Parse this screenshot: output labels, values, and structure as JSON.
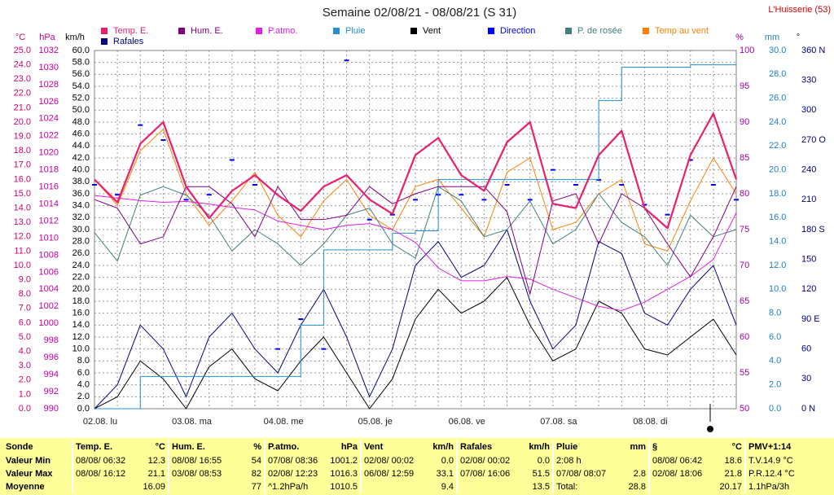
{
  "chart_data": {
    "type": "line",
    "title": "Semaine 02/08/21 - 08/08/21 (S 31)",
    "station": "L'Huisserie (53)",
    "categories": [
      "02.08. lu",
      null,
      null,
      null,
      "03.08. ma",
      null,
      null,
      null,
      "04.08. me",
      null,
      null,
      null,
      "05.08. je",
      null,
      null,
      null,
      "06.08. ve",
      null,
      null,
      null,
      "07.08. sa",
      null,
      null,
      null,
      "08.08. di",
      null,
      null,
      null,
      null
    ],
    "grid": true,
    "axes": [
      {
        "label": "°C",
        "color": "#d0006e",
        "ylim": [
          0,
          25
        ],
        "yticks": [
          {
            "value": 0,
            "label": "0.0"
          },
          {
            "value": 1,
            "label": "1.0"
          },
          {
            "value": 2,
            "label": "2.0"
          },
          {
            "value": 3,
            "label": "3.0"
          },
          {
            "value": 4,
            "label": "4.0"
          },
          {
            "value": 5,
            "label": "5.0"
          },
          {
            "value": 6,
            "label": "6.0"
          },
          {
            "value": 7,
            "label": "7.0"
          },
          {
            "value": 8,
            "label": "8.0"
          },
          {
            "value": 9,
            "label": "9.0"
          },
          {
            "value": 10,
            "label": "10.0"
          },
          {
            "value": 11,
            "label": "11.0"
          },
          {
            "value": 12,
            "label": "12.0"
          },
          {
            "value": 13,
            "label": "13.0"
          },
          {
            "value": 14,
            "label": "14.0"
          },
          {
            "value": 15,
            "label": "15.0"
          },
          {
            "value": 16,
            "label": "16.0"
          },
          {
            "value": 17,
            "label": "17.0"
          },
          {
            "value": 18,
            "label": "18.0"
          },
          {
            "value": 19,
            "label": "19.0"
          },
          {
            "value": 20,
            "label": "20.0"
          },
          {
            "value": 21,
            "label": "21.0"
          },
          {
            "value": 22,
            "label": "22.0"
          },
          {
            "value": 23,
            "label": "23.0"
          },
          {
            "value": 24,
            "label": "24.0"
          },
          {
            "value": 25,
            "label": "25.0"
          }
        ]
      },
      {
        "label": "hPa",
        "color": "#c000a0",
        "ylim": [
          990,
          1032
        ],
        "yticks": [
          990,
          992,
          994,
          996,
          998,
          1000,
          1002,
          1004,
          1006,
          1008,
          1010,
          1012,
          1014,
          1016,
          1018,
          1020,
          1022,
          1024,
          1026,
          1028,
          1030,
          1032
        ]
      },
      {
        "label": "km/h",
        "color": "#000000",
        "grid": true,
        "ylim": [
          0,
          60
        ],
        "yticks": [
          {
            "value": 0,
            "label": "0.0"
          },
          {
            "value": 2,
            "label": "2.0"
          },
          {
            "value": 4,
            "label": "4.0"
          },
          {
            "value": 6,
            "label": "6.0"
          },
          {
            "value": 8,
            "label": "8.0"
          },
          {
            "value": 10,
            "label": "10.0"
          },
          {
            "value": 12,
            "label": "12.0"
          },
          {
            "value": 14,
            "label": "14.0"
          },
          {
            "value": 16,
            "label": "16.0"
          },
          {
            "value": 18,
            "label": "18.0"
          },
          {
            "value": 20,
            "label": "20.0"
          },
          {
            "value": 22,
            "label": "22.0"
          },
          {
            "value": 24,
            "label": "24.0"
          },
          {
            "value": 26,
            "label": "26.0"
          },
          {
            "value": 28,
            "label": "28.0"
          },
          {
            "value": 30,
            "label": "30.0"
          },
          {
            "value": 32,
            "label": "32.0"
          },
          {
            "value": 34,
            "label": "34.0"
          },
          {
            "value": 36,
            "label": "36.0"
          },
          {
            "value": 38,
            "label": "38.0"
          },
          {
            "value": 40,
            "label": "40.0"
          },
          {
            "value": 42,
            "label": "42.0"
          },
          {
            "value": 44,
            "label": "44.0"
          },
          {
            "value": 46,
            "label": "46.0"
          },
          {
            "value": 48,
            "label": "48.0"
          },
          {
            "value": 50,
            "label": "50.0"
          },
          {
            "value": 52,
            "label": "52.0"
          },
          {
            "value": 54,
            "label": "54.0"
          },
          {
            "value": 56,
            "label": "56.0"
          },
          {
            "value": 58,
            "label": "58.0"
          },
          {
            "value": 60,
            "label": "60.0"
          }
        ]
      },
      {
        "label": "%",
        "color": "#a000a0",
        "ylim": [
          50,
          100
        ],
        "yticks": [
          50,
          55,
          60,
          65,
          70,
          75,
          80,
          85,
          90,
          95,
          100
        ]
      },
      {
        "label": "mm",
        "color": "#2080c0",
        "ylim": [
          0,
          30
        ],
        "yticks": [
          {
            "value": 0,
            "label": "0.0"
          },
          {
            "value": 2,
            "label": "2.0"
          },
          {
            "value": 4,
            "label": "4.0"
          },
          {
            "value": 6,
            "label": "6.0"
          },
          {
            "value": 8,
            "label": "8.0"
          },
          {
            "value": 10,
            "label": "10.0"
          },
          {
            "value": 12,
            "label": "12.0"
          },
          {
            "value": 14,
            "label": "14.0"
          },
          {
            "value": 16,
            "label": "16.0"
          },
          {
            "value": 18,
            "label": "18.0"
          },
          {
            "value": 20,
            "label": "20.0"
          },
          {
            "value": 22,
            "label": "22.0"
          },
          {
            "value": 24,
            "label": "24.0"
          },
          {
            "value": 26,
            "label": "26.0"
          },
          {
            "value": 28,
            "label": "28.0"
          },
          {
            "value": 30,
            "label": "30.0"
          }
        ]
      },
      {
        "label": "°",
        "color": "#000080",
        "ylim": [
          0,
          360
        ],
        "yticks": [
          {
            "value": 0,
            "label": "0 N"
          },
          30,
          60,
          {
            "value": 90,
            "label": "90 E"
          },
          120,
          150,
          {
            "value": 180,
            "label": "180 S"
          },
          210,
          240,
          {
            "value": 270,
            "label": "270 O"
          },
          300,
          330,
          {
            "value": 360,
            "label": "360 N"
          }
        ]
      }
    ],
    "series": [
      {
        "name": "Temp. E.",
        "color": "#e8206e",
        "axis": 0,
        "width": 2.2,
        "values": [
          16.0,
          14.4,
          18.5,
          20.0,
          15.5,
          13.3,
          15.2,
          16.3,
          14.9,
          13.8,
          15.5,
          16.3,
          14.6,
          13.6,
          17.7,
          18.9,
          16.3,
          15.2,
          18.6,
          20.0,
          14.3,
          14.0,
          17.7,
          19.4,
          14.0,
          12.6,
          17.7,
          20.6,
          16.0
        ]
      },
      {
        "name": "Hum. E.",
        "color": "#800080",
        "axis": 3,
        "values": [
          79.2,
          78.0,
          73.0,
          74.0,
          81.0,
          81.0,
          78.6,
          74.0,
          81.0,
          76.4,
          76.4,
          77.0,
          81.0,
          78.6,
          80.0,
          81.0,
          81.0,
          81.0,
          77.5,
          66.0,
          79.0,
          80.0,
          73.0,
          80.0,
          78.0,
          73.0,
          68.4,
          74.0,
          81.0
        ]
      },
      {
        "name": "P.atmo.",
        "color": "#e020e0",
        "axis": 1,
        "values": [
          1015.0,
          1014.7,
          1014.4,
          1014.2,
          1014.3,
          1014.0,
          1013.6,
          1013.3,
          1012.0,
          1011.5,
          1011.0,
          1011.5,
          1011.7,
          1011.0,
          1009.5,
          1006.5,
          1005.0,
          1005.0,
          1005.5,
          1005.2,
          1004.0,
          1003.0,
          1002.0,
          1001.5,
          1002.5,
          1004.0,
          1005.5,
          1007.5,
          1013.0
        ]
      },
      {
        "name": "Pluie",
        "color": "#2090d0",
        "axis": 4,
        "step": true,
        "values": [
          0,
          0,
          2.7,
          2.7,
          2.7,
          2.7,
          2.7,
          2.7,
          2.7,
          7.0,
          13.3,
          13.3,
          13.3,
          14.7,
          14.9,
          19.2,
          19.2,
          19.2,
          19.2,
          19.2,
          19.2,
          19.2,
          25.8,
          28.6,
          28.6,
          28.6,
          28.8,
          28.8,
          28.8
        ]
      },
      {
        "name": "Vent",
        "color": "#000000",
        "axis": 2,
        "values": [
          0,
          2,
          8,
          5,
          0,
          7,
          10,
          5,
          3,
          8,
          12,
          6,
          0,
          5,
          15,
          20,
          16,
          18,
          22,
          14,
          8,
          10,
          18,
          16,
          10,
          9,
          12,
          15,
          9
        ]
      },
      {
        "name": "Direction",
        "color": "#0000ff",
        "axis": 5,
        "dots": true,
        "values": [
          225,
          215,
          285,
          270,
          210,
          215,
          250,
          225,
          60,
          90,
          60,
          350,
          190,
          195,
          210,
          215,
          215,
          210,
          225,
          210,
          240,
          225,
          230,
          225,
          205,
          195,
          250,
          225,
          210
        ]
      },
      {
        "name": "P. de rosée",
        "color": "#408080",
        "axis": 0,
        "values": [
          12.3,
          10.3,
          14.9,
          15.5,
          14.9,
          13.5,
          11.0,
          12.5,
          11.5,
          10.0,
          11.5,
          13.5,
          14.0,
          11.5,
          10.5,
          15.5,
          14.5,
          12.0,
          12.5,
          14.5,
          11.5,
          12.5,
          15.0,
          13.0,
          12.0,
          10.0,
          13.5,
          12.0,
          12.5
        ]
      },
      {
        "name": "Temp au vent",
        "color": "#ff8000",
        "axis": 0,
        "values": [
          16.0,
          14.2,
          18.0,
          19.5,
          15.0,
          12.8,
          14.5,
          16.5,
          13.5,
          12.0,
          14.5,
          16.0,
          13.5,
          12.5,
          15.5,
          16.0,
          14.0,
          12.0,
          16.5,
          17.5,
          12.5,
          13.0,
          15.0,
          16.0,
          11.5,
          11.0,
          14.5,
          17.5,
          15.0
        ]
      },
      {
        "name": "Rafales",
        "color": "#000080",
        "axis": 2,
        "values": [
          0,
          4,
          14,
          10,
          2,
          12,
          16,
          10,
          6,
          14,
          20,
          12,
          2,
          10,
          24,
          28,
          22,
          24,
          30,
          18,
          10,
          14,
          28,
          26,
          16,
          14,
          20,
          24,
          14
        ]
      }
    ]
  },
  "stats": {
    "row_labels": [
      "Sonde",
      "Valeur Min",
      "Valeur Max",
      "Moyenne"
    ],
    "sections": [
      {
        "title": "Temp. E.",
        "unit": "°C",
        "rows": [
          {
            "time": "08/08/ 06:32",
            "value": "12.3"
          },
          {
            "time": "08/08/ 16:12",
            "value": "21.1"
          },
          {
            "value": "16.09"
          }
        ]
      },
      {
        "title": "Hum. E.",
        "unit": "%",
        "rows": [
          {
            "time": "08/08/ 16:55",
            "value": "54"
          },
          {
            "time": "03/08/ 08:53",
            "value": "82"
          },
          {
            "value": "77"
          }
        ]
      },
      {
        "title": "P.atmo.",
        "unit": "hPa",
        "rows": [
          {
            "time": "07/08/ 08:36",
            "value": "1001.2"
          },
          {
            "time": "02/08/ 12:23",
            "value": "1016.3"
          },
          {
            "time": "^1.2hPa/h",
            "value": "1010.5"
          }
        ]
      },
      {
        "title": "Vent",
        "unit": "km/h",
        "rows": [
          {
            "time": "02/08/ 00:02",
            "value": "0.0"
          },
          {
            "time": "06/08/ 12:59",
            "value": "33.1"
          },
          {
            "value": "9.4"
          }
        ]
      },
      {
        "title": "Rafales",
        "unit": "km/h",
        "rows": [
          {
            "time": "02/08/ 00:02",
            "value": "0.0"
          },
          {
            "time": "07/08/ 16:06",
            "value": "51.5"
          },
          {
            "value": "13.5"
          }
        ]
      },
      {
        "title": "Pluie",
        "unit": "mm",
        "rows": [
          {
            "time": "2:08 h"
          },
          {
            "time": "07/08/ 08:07",
            "value": "2.8"
          },
          {
            "time": "Total:",
            "value": "28.8"
          }
        ]
      },
      {
        "title": "§",
        "unit": "°C",
        "rows": [
          {
            "time": "08/08/ 06:42",
            "value": "18.6"
          },
          {
            "time": "02/08/ 18:06",
            "value": "21.8"
          },
          {
            "value": "20.17"
          }
        ]
      },
      {
        "title": "PMV+1:14",
        "rows": [
          {
            "time": "T.V.14.9 °C"
          },
          {
            "time": "P.R.12.4 °C"
          },
          {
            "time": "1.1hPa/3h"
          }
        ]
      }
    ]
  }
}
